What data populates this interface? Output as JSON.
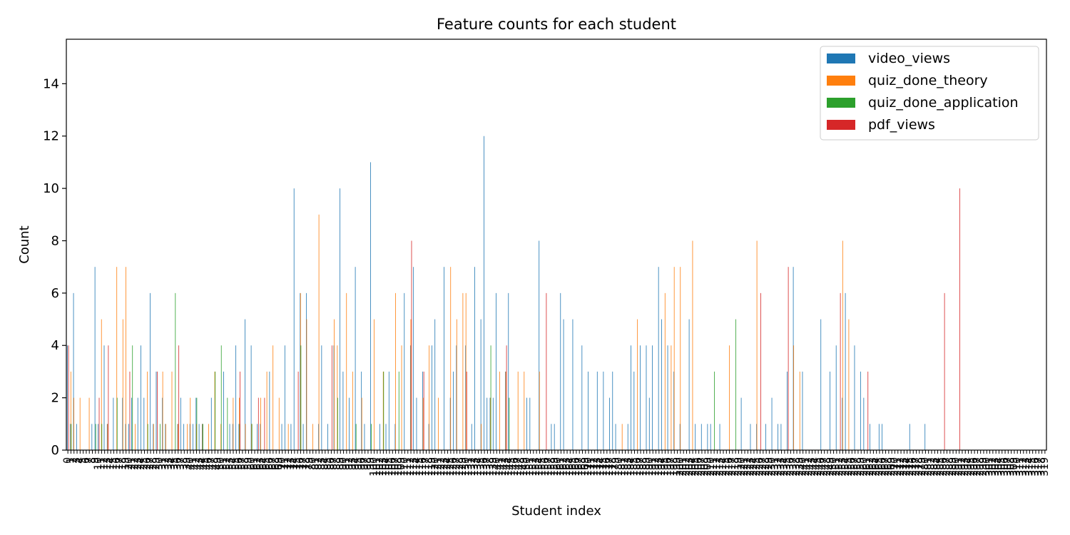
{
  "chart_data": {
    "type": "bar",
    "title": "Feature counts for each student",
    "xlabel": "Student index",
    "ylabel": "Count",
    "ylim": [
      0,
      15.7
    ],
    "yticks": [
      0,
      2,
      4,
      6,
      8,
      10,
      12,
      14
    ],
    "legend_position": "top-right",
    "grid": false,
    "n_students": 320,
    "series": [
      {
        "name": "video_views",
        "color": "#1f77b4",
        "values": [
          4,
          1,
          6,
          1,
          0,
          0,
          0,
          0,
          1,
          7,
          1,
          0,
          4,
          1,
          0,
          2,
          0,
          0,
          2,
          1,
          1,
          2,
          0,
          2,
          4,
          2,
          0,
          6,
          1,
          3,
          0,
          2,
          1,
          0,
          0,
          0,
          1,
          2,
          1,
          0,
          1,
          1,
          2,
          1,
          1,
          0,
          0,
          2,
          0,
          0,
          0,
          3,
          0,
          1,
          1,
          4,
          1,
          0,
          5,
          0,
          4,
          0,
          1,
          1,
          0,
          0,
          3,
          0,
          0,
          0,
          1,
          4,
          0,
          1,
          10,
          0,
          6,
          1,
          6,
          0,
          0,
          0,
          1,
          4,
          0,
          1,
          0,
          4,
          0,
          10,
          3,
          0,
          2,
          0,
          7,
          0,
          3,
          1,
          0,
          11,
          0,
          0,
          1,
          0,
          1,
          3,
          0,
          1,
          0,
          0,
          6,
          0,
          4,
          7,
          2,
          0,
          3,
          0,
          1,
          4,
          5,
          0,
          0,
          7,
          0,
          2,
          3,
          4,
          0,
          0,
          4,
          0,
          1,
          7,
          0,
          5,
          12,
          2,
          2,
          2,
          6,
          0,
          0,
          3,
          6,
          0,
          0,
          0,
          0,
          0,
          2,
          2,
          0,
          0,
          8,
          0,
          0,
          0,
          1,
          1,
          0,
          6,
          5,
          0,
          0,
          5,
          0,
          0,
          4,
          0,
          3,
          0,
          0,
          3,
          0,
          3,
          0,
          2,
          3,
          1,
          0,
          0,
          0,
          1,
          4,
          3,
          0,
          4,
          0,
          4,
          2,
          4,
          0,
          7,
          5,
          0,
          4,
          0,
          3,
          0,
          1,
          0,
          0,
          5,
          0,
          1,
          0,
          1,
          0,
          1,
          1,
          0,
          0,
          1,
          0,
          0,
          0,
          0,
          0,
          0,
          2,
          0,
          0,
          1,
          0,
          1,
          0,
          0,
          1,
          0,
          2,
          0,
          1,
          1,
          0,
          3,
          0,
          7,
          0,
          0,
          3,
          0,
          0,
          0,
          0,
          0,
          5,
          0,
          0,
          3,
          0,
          4,
          0,
          2,
          6,
          0,
          0,
          4,
          0,
          3,
          2,
          0,
          1,
          0,
          0,
          1,
          1,
          0,
          0,
          0,
          0,
          0,
          0,
          0,
          0,
          1,
          0,
          0,
          0,
          0,
          1,
          0,
          0,
          0,
          0,
          0,
          0,
          0,
          0,
          0,
          0,
          0,
          0,
          0,
          0,
          0,
          0,
          0,
          0,
          0,
          0,
          0,
          0,
          0,
          0,
          0,
          0,
          0,
          0,
          0,
          0,
          0,
          0,
          0
        ]
      },
      {
        "name": "quiz_done_theory",
        "color": "#ff7f0e",
        "values": [
          0,
          3,
          2,
          0,
          2,
          0,
          0,
          2,
          0,
          0,
          0,
          5,
          0,
          1,
          0,
          0,
          7,
          0,
          5,
          7,
          0,
          0,
          1,
          0,
          0,
          0,
          3,
          0,
          1,
          0,
          0,
          3,
          1,
          0,
          3,
          0,
          1,
          0,
          0,
          1,
          2,
          0,
          1,
          0,
          1,
          0,
          1,
          0,
          3,
          0,
          1,
          0,
          0,
          0,
          2,
          0,
          2,
          0,
          1,
          0,
          1,
          0,
          0,
          2,
          0,
          3,
          0,
          4,
          0,
          2,
          0,
          0,
          1,
          0,
          0,
          0,
          6,
          0,
          5,
          0,
          1,
          0,
          9,
          0,
          0,
          0,
          0,
          5,
          4,
          0,
          0,
          6,
          0,
          3,
          0,
          0,
          2,
          0,
          0,
          0,
          5,
          0,
          0,
          3,
          0,
          0,
          0,
          6,
          0,
          4,
          0,
          0,
          5,
          0,
          0,
          0,
          2,
          0,
          4,
          0,
          0,
          2,
          0,
          0,
          0,
          7,
          0,
          5,
          0,
          6,
          6,
          0,
          0,
          0,
          0,
          1,
          0,
          0,
          2,
          0,
          0,
          3,
          0,
          3,
          0,
          0,
          0,
          3,
          0,
          3,
          0,
          0,
          0,
          0,
          3,
          0,
          0,
          0,
          0,
          0,
          0,
          0,
          0,
          0,
          0,
          0,
          0,
          0,
          0,
          0,
          0,
          0,
          0,
          0,
          0,
          0,
          0,
          0,
          0,
          0,
          0,
          1,
          0,
          0,
          0,
          0,
          5,
          0,
          0,
          0,
          0,
          0,
          0,
          0,
          0,
          6,
          0,
          4,
          7,
          0,
          7,
          0,
          0,
          0,
          8,
          0,
          0,
          0,
          0,
          0,
          0,
          0,
          0,
          0,
          0,
          0,
          4,
          0,
          0,
          0,
          0,
          0,
          0,
          0,
          0,
          8,
          0,
          0,
          0,
          0,
          0,
          0,
          0,
          0,
          0,
          0,
          0,
          4,
          0,
          3,
          0,
          0,
          0,
          0,
          0,
          0,
          0,
          0,
          0,
          0,
          0,
          0,
          0,
          8,
          0,
          5,
          0,
          0,
          0,
          0,
          0,
          0,
          0,
          0,
          0,
          0,
          0,
          0,
          0,
          0,
          0,
          0,
          0,
          0,
          0,
          0,
          0,
          0,
          0,
          0,
          0,
          0,
          0,
          0,
          0,
          0,
          0,
          0,
          0,
          0,
          0,
          0,
          0,
          0,
          0,
          0,
          0,
          0,
          0,
          0,
          0,
          0,
          0,
          0,
          0,
          0,
          0,
          0,
          0,
          0,
          0,
          0,
          0,
          0,
          0,
          0,
          0,
          0,
          0
        ]
      },
      {
        "name": "quiz_done_application",
        "color": "#2ca02c",
        "values": [
          0,
          1,
          0,
          0,
          0,
          0,
          0,
          0,
          0,
          1,
          0,
          1,
          0,
          0,
          0,
          0,
          2,
          0,
          0,
          0,
          0,
          4,
          0,
          0,
          0,
          0,
          1,
          0,
          0,
          0,
          1,
          0,
          0,
          0,
          0,
          6,
          0,
          0,
          0,
          0,
          0,
          0,
          2,
          0,
          1,
          0,
          0,
          0,
          3,
          0,
          4,
          0,
          2,
          0,
          0,
          0,
          1,
          0,
          0,
          0,
          1,
          0,
          0,
          0,
          0,
          0,
          0,
          0,
          0,
          0,
          0,
          0,
          0,
          0,
          0,
          0,
          4,
          0,
          0,
          0,
          0,
          0,
          0,
          0,
          0,
          0,
          0,
          0,
          2,
          0,
          0,
          0,
          0,
          0,
          1,
          0,
          0,
          0,
          0,
          1,
          0,
          0,
          0,
          3,
          0,
          0,
          0,
          0,
          3,
          0,
          0,
          0,
          0,
          0,
          0,
          0,
          0,
          0,
          0,
          0,
          0,
          0,
          0,
          0,
          0,
          0,
          0,
          0,
          0,
          0,
          0,
          0,
          0,
          0,
          0,
          0,
          0,
          0,
          4,
          0,
          0,
          0,
          0,
          0,
          2,
          0,
          0,
          0,
          0,
          0,
          0,
          0,
          0,
          0,
          0,
          0,
          0,
          0,
          0,
          0,
          0,
          0,
          0,
          0,
          0,
          0,
          0,
          0,
          0,
          0,
          0,
          0,
          0,
          0,
          0,
          0,
          0,
          0,
          0,
          0,
          0,
          0,
          0,
          0,
          0,
          0,
          0,
          0,
          0,
          0,
          0,
          0,
          0,
          0,
          0,
          0,
          0,
          0,
          0,
          0,
          0,
          0,
          0,
          0,
          0,
          0,
          0,
          0,
          0,
          0,
          0,
          3,
          0,
          0,
          0,
          0,
          0,
          0,
          5,
          0,
          0,
          0,
          0,
          0,
          0,
          0,
          0,
          0,
          0,
          0,
          0,
          0,
          0,
          0,
          0,
          0,
          0,
          0,
          0,
          0,
          0,
          0,
          0,
          0,
          0,
          0,
          0,
          0,
          0,
          0,
          0,
          0,
          0,
          0,
          0,
          0,
          0,
          0,
          0,
          0,
          0,
          0,
          0,
          0,
          0,
          0,
          0,
          0,
          0,
          0,
          0,
          0,
          0,
          0,
          0,
          0,
          0,
          0,
          0,
          0,
          0,
          0,
          0,
          0,
          0,
          0,
          0,
          0,
          0,
          0,
          0,
          0,
          0,
          0,
          0,
          0,
          0,
          0,
          0,
          0,
          0,
          0,
          0,
          0,
          0,
          0,
          0,
          0,
          0,
          0,
          0,
          0,
          0,
          0,
          0,
          0,
          0,
          0,
          0,
          0,
          0,
          0,
          0,
          0,
          0,
          0,
          0
        ]
      },
      {
        "name": "pdf_views",
        "color": "#d62728",
        "values": [
          4,
          0,
          0,
          0,
          0,
          0,
          0,
          0,
          0,
          0,
          2,
          0,
          0,
          4,
          0,
          0,
          0,
          0,
          0,
          0,
          3,
          0,
          0,
          0,
          0,
          0,
          0,
          0,
          0,
          3,
          0,
          0,
          0,
          0,
          0,
          0,
          4,
          0,
          0,
          0,
          0,
          0,
          0,
          0,
          0,
          0,
          0,
          0,
          0,
          0,
          0,
          0,
          0,
          0,
          0,
          0,
          3,
          0,
          0,
          0,
          0,
          0,
          2,
          0,
          2,
          0,
          0,
          0,
          0,
          0,
          0,
          0,
          0,
          0,
          0,
          3,
          0,
          0,
          0,
          0,
          0,
          0,
          0,
          0,
          0,
          0,
          4,
          0,
          0,
          0,
          0,
          0,
          0,
          0,
          0,
          0,
          0,
          0,
          0,
          0,
          0,
          0,
          0,
          0,
          0,
          0,
          0,
          0,
          0,
          0,
          0,
          0,
          8,
          0,
          0,
          0,
          3,
          0,
          0,
          0,
          0,
          0,
          0,
          0,
          0,
          0,
          0,
          0,
          0,
          0,
          3,
          0,
          0,
          0,
          0,
          0,
          0,
          0,
          0,
          0,
          0,
          0,
          0,
          4,
          0,
          0,
          0,
          0,
          0,
          0,
          0,
          0,
          0,
          0,
          0,
          0,
          6,
          0,
          0,
          0,
          0,
          0,
          0,
          0,
          0,
          0,
          0,
          0,
          0,
          0,
          0,
          0,
          0,
          0,
          0,
          0,
          0,
          0,
          0,
          0,
          0,
          0,
          0,
          0,
          0,
          0,
          0,
          0,
          0,
          0,
          0,
          0,
          0,
          0,
          0,
          0,
          0,
          0,
          0,
          0,
          0,
          0,
          0,
          0,
          0,
          0,
          0,
          0,
          0,
          0,
          0,
          0,
          0,
          0,
          0,
          0,
          0,
          0,
          0,
          0,
          0,
          0,
          0,
          0,
          0,
          0,
          6,
          0,
          0,
          0,
          0,
          0,
          0,
          0,
          0,
          7,
          0,
          0,
          0,
          0,
          0,
          0,
          0,
          0,
          0,
          0,
          0,
          0,
          0,
          0,
          0,
          0,
          6,
          0,
          0,
          0,
          0,
          0,
          0,
          0,
          0,
          3,
          0,
          0,
          0,
          0,
          0,
          0,
          0,
          0,
          0,
          0,
          0,
          0,
          0,
          0,
          0,
          0,
          0,
          0,
          0,
          0,
          0,
          0,
          0,
          0,
          6,
          0,
          0,
          0,
          0,
          10,
          0,
          0,
          0,
          0,
          0,
          0,
          0,
          0,
          0,
          0,
          0,
          0,
          0,
          0,
          0,
          0,
          0,
          0,
          0,
          0,
          0,
          0,
          0,
          0,
          0,
          0,
          0,
          0,
          0,
          0
        ]
      }
    ]
  }
}
